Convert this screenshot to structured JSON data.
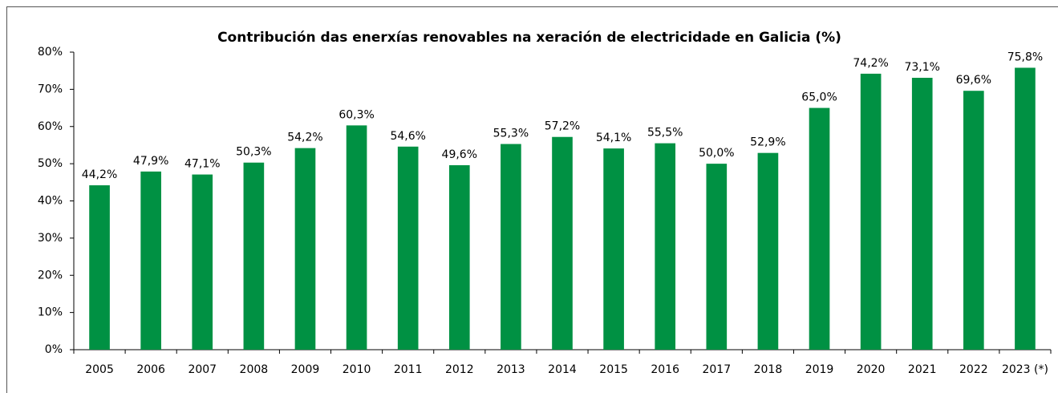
{
  "chart_data": {
    "type": "bar",
    "title": "Contribución das enerxías renovables na xeración de electricidade  en Galicia (%)",
    "categories": [
      "2005",
      "2006",
      "2007",
      "2008",
      "2009",
      "2010",
      "2011",
      "2012",
      "2013",
      "2014",
      "2015",
      "2016",
      "2017",
      "2018",
      "2019",
      "2020",
      "2021",
      "2022",
      "2023 (*)"
    ],
    "values": [
      44.2,
      47.9,
      47.1,
      50.3,
      54.2,
      60.3,
      54.6,
      49.6,
      55.3,
      57.2,
      54.1,
      55.5,
      50.0,
      52.9,
      65.0,
      74.2,
      73.1,
      69.6,
      75.8
    ],
    "value_labels": [
      "44,2%",
      "47,9%",
      "47,1%",
      "50,3%",
      "54,2%",
      "60,3%",
      "54,6%",
      "49,6%",
      "55,3%",
      "57,2%",
      "54,1%",
      "55,5%",
      "50,0%",
      "52,9%",
      "65,0%",
      "74,2%",
      "73,1%",
      "69,6%",
      "75,8%"
    ],
    "color": "#009143",
    "ylim": [
      0,
      80
    ],
    "yticks": [
      {
        "value": 0,
        "label": "0%"
      },
      {
        "value": 10,
        "label": "10%"
      },
      {
        "value": 20,
        "label": "20%"
      },
      {
        "value": 30,
        "label": "30%"
      },
      {
        "value": 40,
        "label": "40%"
      },
      {
        "value": 50,
        "label": "50%"
      },
      {
        "value": 60,
        "label": "60%"
      },
      {
        "value": 70,
        "label": "70%"
      },
      {
        "value": 80,
        "label": "80%"
      }
    ],
    "grid": false
  }
}
